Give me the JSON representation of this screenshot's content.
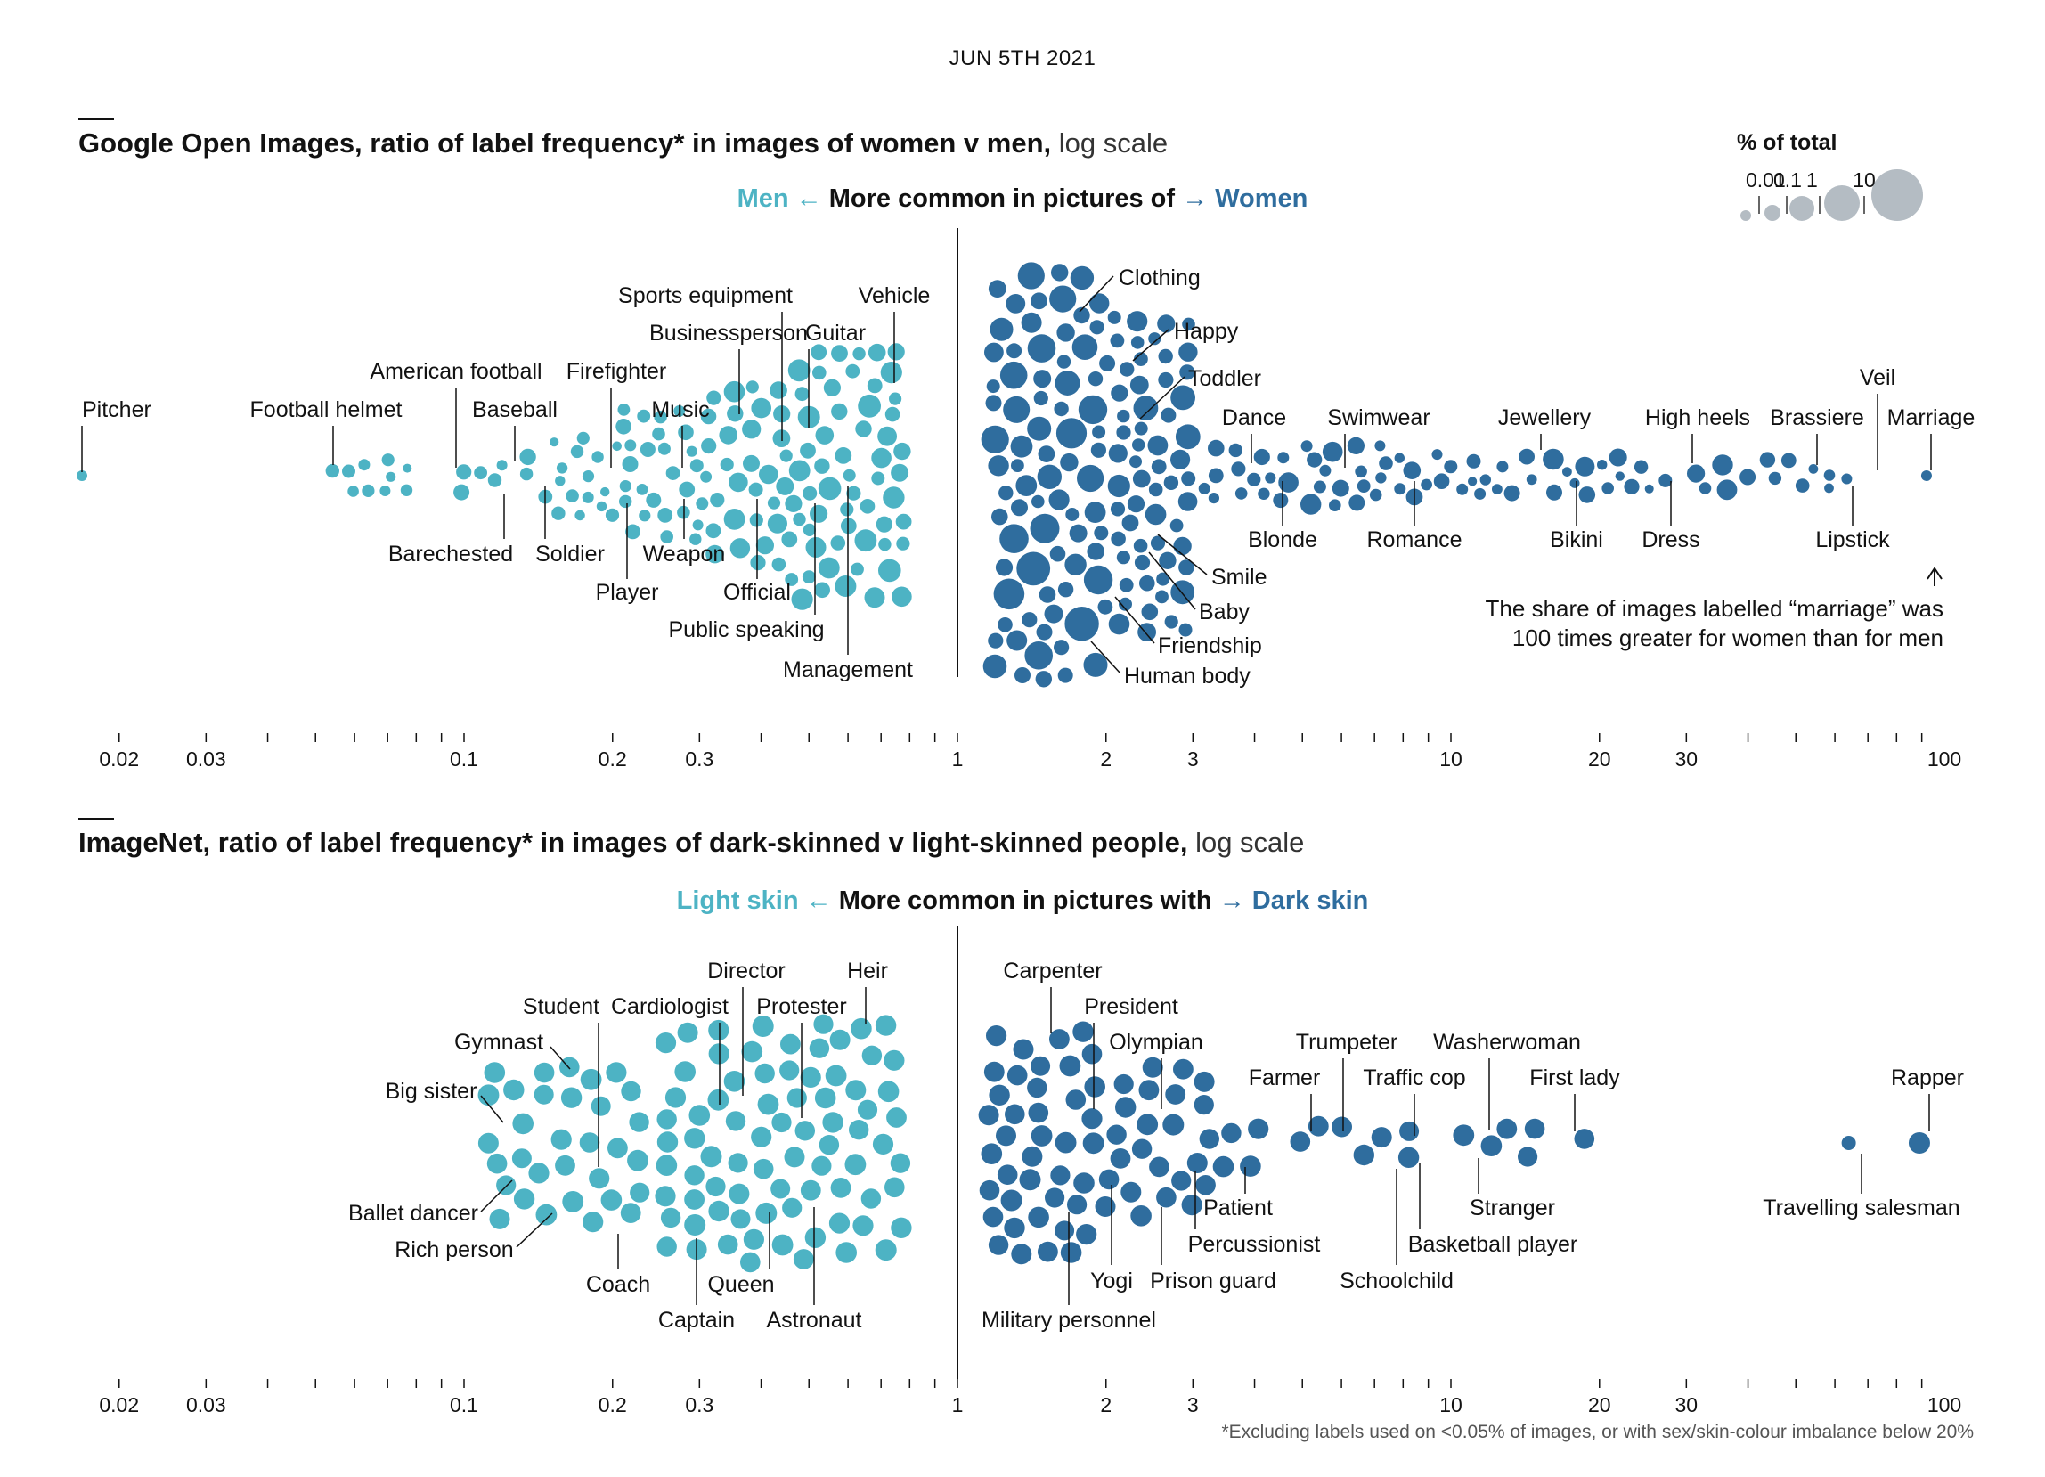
{
  "date": "JUN 5TH 2021",
  "legend": {
    "title": "% of total",
    "sizes": [
      "0.01",
      "0.1",
      "1",
      "10"
    ]
  },
  "footnote": "*Excluding labels used on <0.05% of images, or with sex/skin-colour imbalance below 20%",
  "colors": {
    "left": "#4db3c4",
    "right": "#2f6d9e",
    "legend": "#b4bcc3",
    "axis": "#121212"
  },
  "chart_data": [
    {
      "type": "scatter",
      "title_bold": "Google Open Images, ratio of label frequency* in images of women v men,",
      "title_light": "log scale",
      "direction": {
        "left": "Men",
        "left_arrow": "←",
        "center": "More common in pictures of",
        "right_arrow": "→",
        "right": "Women"
      },
      "x_scale": "log",
      "xlim": [
        0.015,
        100
      ],
      "tick_labels": [
        "0.02",
        "0.03",
        "0.1",
        "0.2",
        "0.3",
        "1",
        "2",
        "3",
        "10",
        "20",
        "30",
        "100"
      ],
      "tick_values": [
        0.02,
        0.03,
        0.1,
        0.2,
        0.3,
        1,
        2,
        3,
        10,
        20,
        30,
        100
      ],
      "labels": [
        {
          "text": "Pitcher",
          "x": 0.017
        },
        {
          "text": "Football helmet",
          "x": 0.056
        },
        {
          "text": "American football",
          "x": 0.1
        },
        {
          "text": "Baseball",
          "x": 0.13
        },
        {
          "text": "Barechested",
          "x": 0.12
        },
        {
          "text": "Firefighter",
          "x": 0.2
        },
        {
          "text": "Soldier",
          "x": 0.145
        },
        {
          "text": "Music",
          "x": 0.28
        },
        {
          "text": "Player",
          "x": 0.2
        },
        {
          "text": "Weapon",
          "x": 0.26
        },
        {
          "text": "Businessperson",
          "x": 0.36
        },
        {
          "text": "Sports equipment",
          "x": 0.37
        },
        {
          "text": "Official",
          "x": 0.41
        },
        {
          "text": "Public speaking",
          "x": 0.48
        },
        {
          "text": "Guitar",
          "x": 0.52
        },
        {
          "text": "Management",
          "x": 0.6
        },
        {
          "text": "Vehicle",
          "x": 0.73
        },
        {
          "text": "Clothing",
          "x": 1.75
        },
        {
          "text": "Happy",
          "x": 2.4
        },
        {
          "text": "Toddler",
          "x": 2.4
        },
        {
          "text": "Dance",
          "x": 3.9
        },
        {
          "text": "Blonde",
          "x": 4.3
        },
        {
          "text": "Smile",
          "x": 2.4
        },
        {
          "text": "Baby",
          "x": 2.2
        },
        {
          "text": "Friendship",
          "x": 2.0
        },
        {
          "text": "Human body",
          "x": 1.9
        },
        {
          "text": "Swimwear",
          "x": 5.8
        },
        {
          "text": "Romance",
          "x": 7.8
        },
        {
          "text": "Jewellery",
          "x": 14.5
        },
        {
          "text": "Bikini",
          "x": 16.8
        },
        {
          "text": "High heels",
          "x": 30
        },
        {
          "text": "Dress",
          "x": 28
        },
        {
          "text": "Brassiere",
          "x": 50
        },
        {
          "text": "Lipstick",
          "x": 56
        },
        {
          "text": "Veil",
          "x": 71
        },
        {
          "text": "Marriage",
          "x": 92
        }
      ],
      "annotation": [
        "The share of images labelled “marriage” was",
        "100 times greater for women than for men"
      ]
    },
    {
      "type": "scatter",
      "title_bold": "ImageNet, ratio of label frequency* in images of dark-skinned v light-skinned people,",
      "title_light": "log scale",
      "direction": {
        "left": "Light skin",
        "left_arrow": "←",
        "center": "More common in pictures with",
        "right_arrow": "→",
        "right": "Dark skin"
      },
      "x_scale": "log",
      "xlim": [
        0.015,
        100
      ],
      "tick_labels": [
        "0.02",
        "0.03",
        "0.1",
        "0.2",
        "0.3",
        "1",
        "2",
        "3",
        "10",
        "20",
        "30",
        "100"
      ],
      "tick_values": [
        0.02,
        0.03,
        0.1,
        0.2,
        0.3,
        1,
        2,
        3,
        10,
        20,
        30,
        100
      ],
      "labels": [
        {
          "text": "Big sister",
          "x": 0.12
        },
        {
          "text": "Gymnast",
          "x": 0.16
        },
        {
          "text": "Student",
          "x": 0.18
        },
        {
          "text": "Ballet dancer",
          "x": 0.12
        },
        {
          "text": "Rich person",
          "x": 0.14
        },
        {
          "text": "Coach",
          "x": 0.2
        },
        {
          "text": "Cardiologist",
          "x": 0.32
        },
        {
          "text": "Director",
          "x": 0.37
        },
        {
          "text": "Captain",
          "x": 0.3
        },
        {
          "text": "Queen",
          "x": 0.38
        },
        {
          "text": "Protester",
          "x": 0.48
        },
        {
          "text": "Astronaut",
          "x": 0.47
        },
        {
          "text": "Heir",
          "x": 0.62
        },
        {
          "text": "Carpenter",
          "x": 1.4
        },
        {
          "text": "President",
          "x": 1.7
        },
        {
          "text": "Military personnel",
          "x": 1.5
        },
        {
          "text": "Yogi",
          "x": 2.0
        },
        {
          "text": "Olympian",
          "x": 2.5
        },
        {
          "text": "Prison guard",
          "x": 2.5
        },
        {
          "text": "Percussionist",
          "x": 3.0
        },
        {
          "text": "Patient",
          "x": 3.7
        },
        {
          "text": "Farmer",
          "x": 4.9
        },
        {
          "text": "Trumpeter",
          "x": 5.8
        },
        {
          "text": "Schoolchild",
          "x": 7.3
        },
        {
          "text": "Traffic cop",
          "x": 8.4
        },
        {
          "text": "Basketball player",
          "x": 8.6
        },
        {
          "text": "Washerwoman",
          "x": 12.5
        },
        {
          "text": "Stranger",
          "x": 11.6
        },
        {
          "text": "First lady",
          "x": 17.4
        },
        {
          "text": "Travelling salesman",
          "x": 64
        },
        {
          "text": "Rapper",
          "x": 89
        }
      ]
    }
  ]
}
